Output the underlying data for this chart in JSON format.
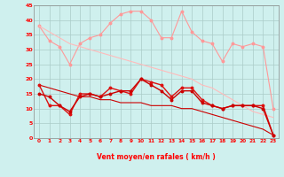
{
  "x": [
    0,
    1,
    2,
    3,
    4,
    5,
    6,
    7,
    8,
    9,
    10,
    11,
    12,
    13,
    14,
    15,
    16,
    17,
    18,
    19,
    20,
    21,
    22,
    23
  ],
  "line_rafales": [
    38,
    33,
    31,
    25,
    32,
    34,
    35,
    39,
    42,
    43,
    43,
    40,
    34,
    34,
    43,
    36,
    33,
    32,
    26,
    32,
    31,
    32,
    31,
    10
  ],
  "line_moyen2": [
    18,
    11,
    11,
    8,
    15,
    15,
    14,
    17,
    16,
    15,
    20,
    19,
    18,
    14,
    17,
    17,
    13,
    11,
    10,
    11,
    11,
    11,
    11,
    1
  ],
  "line_moyen1": [
    15,
    14,
    11,
    9,
    14,
    15,
    14,
    15,
    16,
    16,
    20,
    18,
    16,
    13,
    16,
    16,
    12,
    11,
    10,
    11,
    11,
    11,
    10,
    1
  ],
  "line_trend_high": [
    38,
    36,
    34,
    32,
    31,
    30,
    29,
    28,
    27,
    26,
    25,
    24,
    23,
    22,
    21,
    20,
    18,
    17,
    15,
    13,
    11,
    9,
    8,
    7
  ],
  "line_trend_low": [
    18,
    17,
    16,
    15,
    14,
    14,
    13,
    13,
    12,
    12,
    12,
    11,
    11,
    11,
    10,
    10,
    9,
    8,
    7,
    6,
    5,
    4,
    3,
    1
  ],
  "xlabel": "Vent moyen/en rafales ( km/h )",
  "ylim": [
    0,
    45
  ],
  "yticks": [
    0,
    5,
    10,
    15,
    20,
    25,
    30,
    35,
    40,
    45
  ],
  "xticks": [
    0,
    1,
    2,
    3,
    4,
    5,
    6,
    7,
    8,
    9,
    10,
    11,
    12,
    13,
    14,
    15,
    16,
    17,
    18,
    19,
    20,
    21,
    22,
    23
  ],
  "bg_color": "#cff0ee",
  "grid_color": "#aaccc8",
  "color_light": "#ff9999",
  "color_dark1": "#dd1111",
  "color_dark2": "#cc0000",
  "color_trend": "#ffbbbb"
}
